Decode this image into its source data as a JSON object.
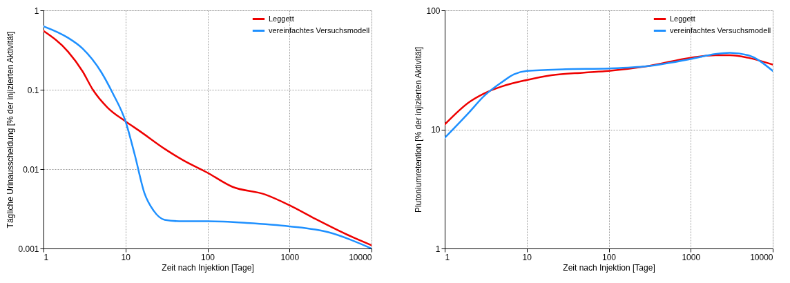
{
  "chart_data": [
    {
      "type": "line",
      "xlabel": "Zeit nach Injektion [Tage]",
      "ylabel": "Tägliche Urinausscheidung [% der injizierten Aktivität]",
      "log": "xy",
      "grid": true,
      "legend": "top right",
      "line_style": "solid",
      "marker": "none",
      "xlim": [
        1,
        10000
      ],
      "xticks": [
        1,
        10,
        100,
        1000,
        10000
      ],
      "ylim": [
        0.001,
        1
      ],
      "yticks": [
        0.001,
        0.01,
        0.1,
        1
      ],
      "series": [
        {
          "name": "Leggett",
          "color": "#ee0000",
          "x": [
            1,
            2,
            3,
            4,
            6,
            10,
            15,
            30,
            50,
            100,
            200,
            500,
            1000,
            2000,
            5000,
            10000
          ],
          "values": [
            0.55,
            0.3,
            0.17,
            0.1,
            0.06,
            0.04,
            0.03,
            0.018,
            0.013,
            0.009,
            0.006,
            0.0048,
            0.0035,
            0.0024,
            0.0015,
            0.0011
          ]
        },
        {
          "name": "vereinfachtes Versuchsmodell",
          "color": "#1e90ff",
          "x": [
            1,
            2,
            3,
            5,
            7,
            10,
            13,
            17,
            22,
            30,
            50,
            100,
            300,
            1000,
            3000,
            10000
          ],
          "values": [
            0.63,
            0.45,
            0.33,
            0.17,
            0.09,
            0.04,
            0.015,
            0.005,
            0.003,
            0.0023,
            0.0022,
            0.0022,
            0.0021,
            0.0019,
            0.0016,
            0.001
          ]
        }
      ]
    },
    {
      "type": "line",
      "xlabel": "Zeit nach Injektion [Tage]",
      "ylabel": "Plutoniumretention [% der injizierten Aktivität]",
      "log": "xy",
      "grid": true,
      "legend": "top right",
      "line_style": "solid",
      "marker": "none",
      "xlim": [
        1,
        10000
      ],
      "xticks": [
        1,
        10,
        100,
        1000,
        10000
      ],
      "ylim": [
        1,
        100
      ],
      "yticks": [
        1,
        10,
        100
      ],
      "series": [
        {
          "name": "Leggett",
          "color": "#ee0000",
          "x": [
            1,
            2,
            3,
            5,
            10,
            20,
            50,
            100,
            300,
            1000,
            2000,
            3000,
            5000,
            10000
          ],
          "values": [
            11,
            17,
            20,
            23,
            26,
            28.5,
            30,
            31,
            34,
            40,
            42,
            42,
            40,
            35
          ]
        },
        {
          "name": "vereinfachtes Versuchsmodell",
          "color": "#1e90ff",
          "x": [
            1,
            2,
            3,
            5,
            7,
            10,
            30,
            100,
            300,
            1000,
            2000,
            3000,
            5000,
            10000
          ],
          "values": [
            8.5,
            14,
            19,
            25,
            29,
            31,
            32,
            32.5,
            34,
            39,
            43,
            44,
            42,
            31
          ]
        }
      ]
    }
  ]
}
